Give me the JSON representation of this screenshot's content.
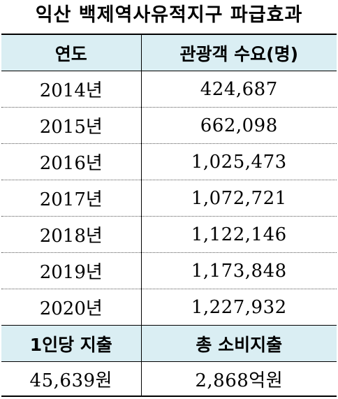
{
  "title": "익산 백제역사유적지구 파급효과",
  "table": {
    "headers": [
      "연도",
      "관광객 수요(명)"
    ],
    "rows": [
      {
        "year": "2014년",
        "visitors": "424,687"
      },
      {
        "year": "2015년",
        "visitors": "662,098"
      },
      {
        "year": "2016년",
        "visitors": "1,025,473"
      },
      {
        "year": "2017년",
        "visitors": "1,072,721"
      },
      {
        "year": "2018년",
        "visitors": "1,122,146"
      },
      {
        "year": "2019년",
        "visitors": "1,173,848"
      },
      {
        "year": "2020년",
        "visitors": "1,227,932"
      }
    ],
    "summary_headers": [
      "1인당 지출",
      "총 소비지출"
    ],
    "summary_values": [
      "45,639원",
      "2,868억원"
    ]
  },
  "colors": {
    "header_bg": "#daeef3"
  }
}
